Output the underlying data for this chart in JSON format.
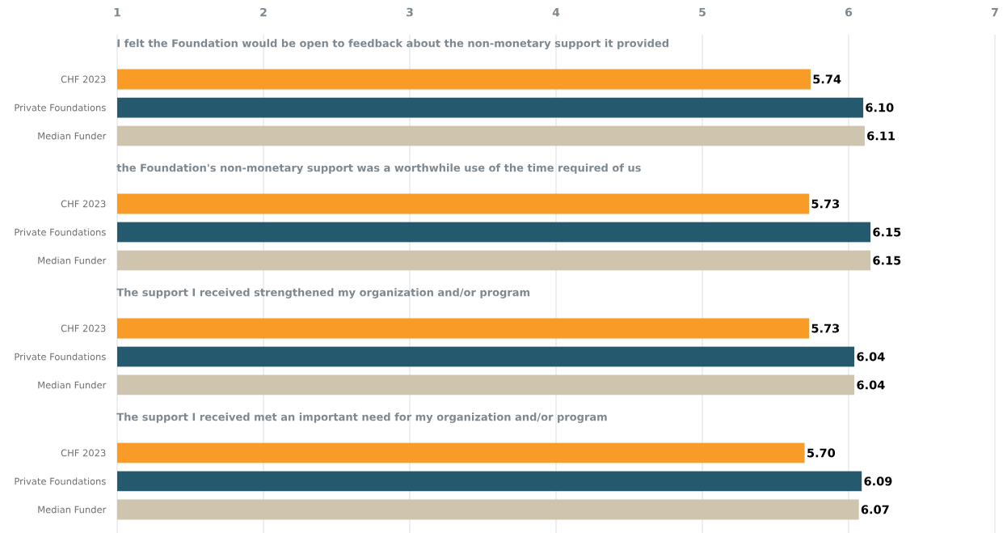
{
  "chart_data": [
    {
      "type": "bar",
      "orientation": "horizontal",
      "title": "I felt the Foundation would be open to feedback about the non-monetary support it provided",
      "categories": [
        "CHF 2023",
        "Private Foundations",
        "Median Funder"
      ],
      "values": [
        5.74,
        6.1,
        6.11
      ],
      "value_labels": [
        "5.74",
        "6.10",
        "6.11"
      ],
      "colors": [
        "#f89c27",
        "#255a6e",
        "#cfc4ad"
      ],
      "xlim": [
        1,
        7
      ],
      "xticks": [
        1,
        2,
        3,
        4,
        5,
        6,
        7
      ],
      "grid": "x"
    },
    {
      "type": "bar",
      "orientation": "horizontal",
      "title": "the Foundation's non-monetary support was a worthwhile use of the time required of us",
      "categories": [
        "CHF 2023",
        "Private Foundations",
        "Median Funder"
      ],
      "values": [
        5.73,
        6.15,
        6.15
      ],
      "value_labels": [
        "5.73",
        "6.15",
        "6.15"
      ],
      "colors": [
        "#f89c27",
        "#255a6e",
        "#cfc4ad"
      ],
      "xlim": [
        1,
        7
      ],
      "xticks": [
        1,
        2,
        3,
        4,
        5,
        6,
        7
      ],
      "grid": "x",
      "tick_labels": "y"
    },
    {
      "type": "bar",
      "orientation": "horizontal",
      "title": "The support I received strengthened my organization and/or program",
      "categories": [
        "CHF 2023",
        "Private Foundations",
        "Median Funder"
      ],
      "values": [
        5.73,
        6.04,
        6.04
      ],
      "value_labels": [
        "5.73",
        "6.04",
        "6.04"
      ],
      "colors": [
        "#f89c27",
        "#255a6e",
        "#cfc4ad"
      ],
      "xlim": [
        1,
        7
      ],
      "xticks": [
        1,
        2,
        3,
        4,
        5,
        6,
        7
      ],
      "grid": "x",
      "tick_labels": "y"
    },
    {
      "type": "bar",
      "orientation": "horizontal",
      "title": "The support I received met an important need for my organization and/or program",
      "categories": [
        "CHF 2023",
        "Private Foundations",
        "Median Funder"
      ],
      "values": [
        5.7,
        6.09,
        6.07
      ],
      "value_labels": [
        "5.70",
        "6.09",
        "6.07"
      ],
      "colors": [
        "#f89c27",
        "#255a6e",
        "#cfc4ad"
      ],
      "xlim": [
        1,
        7
      ],
      "xticks": [
        1,
        2,
        3,
        4,
        5,
        6,
        7
      ],
      "grid": "x",
      "tick_labels": "y"
    }
  ]
}
